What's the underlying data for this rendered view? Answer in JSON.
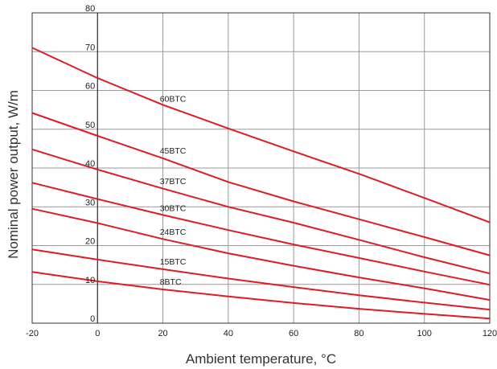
{
  "chart_data": {
    "type": "line",
    "title": "",
    "xlabel": "Ambient temperature, °C",
    "ylabel": "Nominal power output, W/m",
    "xlim": [
      -20,
      120
    ],
    "ylim": [
      0,
      80
    ],
    "xticks": [
      -20,
      0,
      20,
      40,
      60,
      80,
      100,
      120
    ],
    "yticks": [
      0,
      10,
      20,
      30,
      40,
      50,
      60,
      70,
      80
    ],
    "grid": true,
    "legend": "inline labels",
    "series": [
      {
        "name": "60BTC",
        "x": [
          -20,
          0,
          20,
          40,
          60,
          80,
          100,
          120
        ],
        "y": [
          71,
          63.2,
          56.3,
          50.2,
          44.3,
          38.5,
          32.3,
          26
        ]
      },
      {
        "name": "45BTC",
        "x": [
          -20,
          0,
          20,
          40,
          60,
          80,
          100,
          120
        ],
        "y": [
          54.2,
          48.3,
          42.5,
          36.4,
          31.4,
          26.8,
          22.2,
          17.5
        ]
      },
      {
        "name": "37BTC",
        "x": [
          -20,
          0,
          20,
          40,
          60,
          80,
          100,
          120
        ],
        "y": [
          44.8,
          39.6,
          34.7,
          30,
          25.9,
          21.5,
          17,
          12.8
        ]
      },
      {
        "name": "30BTC",
        "x": [
          -20,
          0,
          20,
          40,
          60,
          80,
          100,
          120
        ],
        "y": [
          36.2,
          32,
          27.9,
          24,
          20.3,
          16.8,
          13.3,
          9.9
        ]
      },
      {
        "name": "24BTC",
        "x": [
          -20,
          0,
          20,
          40,
          60,
          80,
          100,
          120
        ],
        "y": [
          29.5,
          25.8,
          21.7,
          18,
          14.8,
          11.8,
          9,
          6
        ]
      },
      {
        "name": "15BTC",
        "x": [
          -20,
          0,
          20,
          40,
          60,
          80,
          100,
          120
        ],
        "y": [
          19,
          16.4,
          13.9,
          11.5,
          9.3,
          7.2,
          5.3,
          3.5
        ]
      },
      {
        "name": "8BTC",
        "x": [
          -20,
          0,
          20,
          40,
          60,
          80,
          100,
          120
        ],
        "y": [
          13.2,
          10.8,
          8.7,
          6.9,
          5.2,
          3.7,
          2.4,
          1.2
        ]
      }
    ],
    "colors": {
      "line": "#e01b24",
      "grid": "#999999",
      "axis": "#333333"
    }
  }
}
